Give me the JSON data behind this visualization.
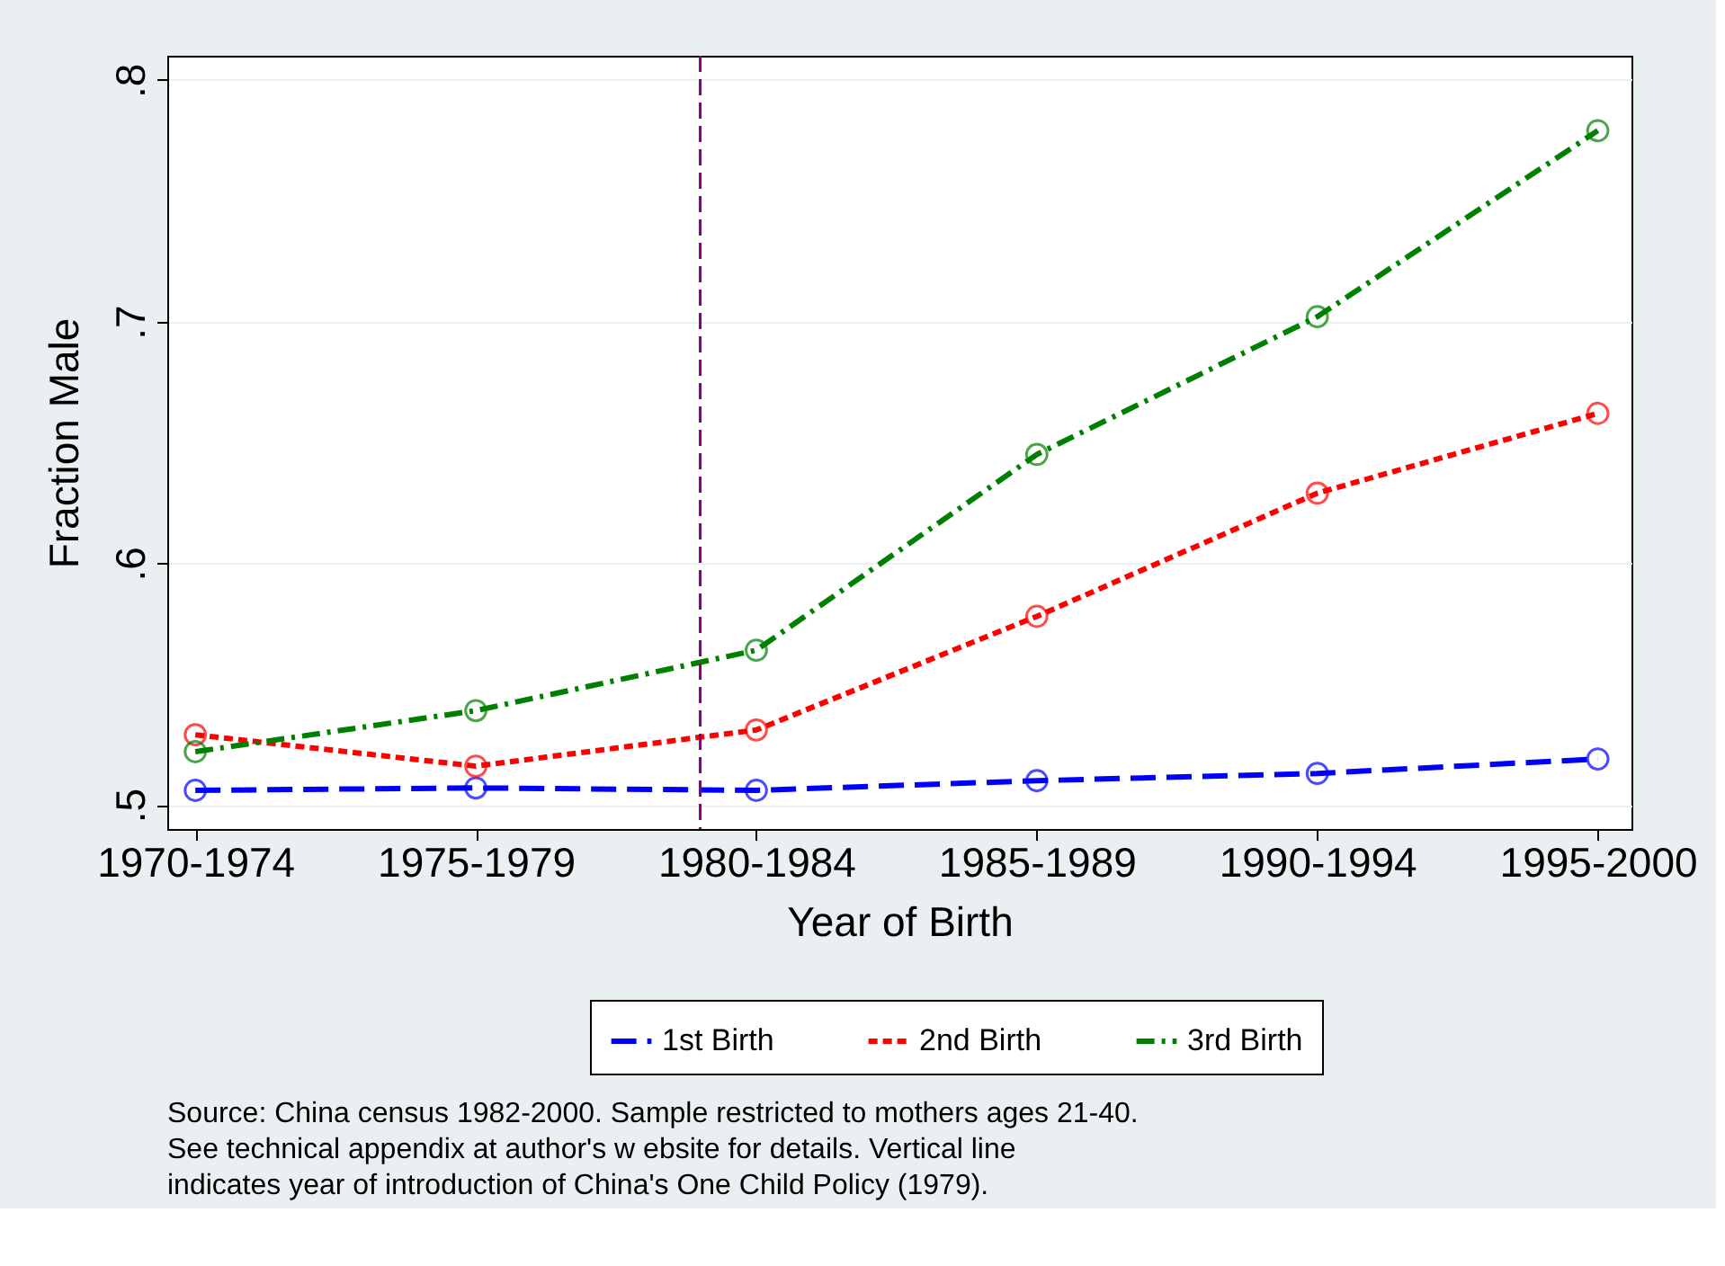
{
  "chart_data": {
    "type": "line",
    "xlabel": "Year of Birth",
    "ylabel": "Fraction Male",
    "categories": [
      "1970-1974",
      "1975-1979",
      "1980-1984",
      "1985-1989",
      "1990-1994",
      "1995-2000"
    ],
    "ylim": [
      0.49,
      0.81
    ],
    "yticks": [
      {
        "value": 0.5,
        "label": ".5"
      },
      {
        "value": 0.6,
        "label": ".6"
      },
      {
        "value": 0.7,
        "label": ".7"
      },
      {
        "value": 0.8,
        "label": ".8"
      }
    ],
    "series": [
      {
        "name": "1st Birth",
        "color": "#0000ff",
        "line_style": "dashed",
        "values": [
          0.506,
          0.507,
          0.506,
          0.51,
          0.513,
          0.519
        ]
      },
      {
        "name": "2nd Birth",
        "color": "#ff0000",
        "line_style": "dotted",
        "values": [
          0.529,
          0.516,
          0.531,
          0.578,
          0.629,
          0.662
        ]
      },
      {
        "name": "3rd Birth",
        "color": "#008000",
        "line_style": "dashdot",
        "values": [
          0.522,
          0.539,
          0.564,
          0.645,
          0.702,
          0.779
        ]
      }
    ],
    "marker": "circle",
    "grid": "y",
    "legend": "bottom",
    "annotations": [
      "Source: China census 1982-2000. Sample restricted to mothers ages 21-40.",
      "See technical appendix at author's w ebsite for details. Vertical line",
      "indicates year of introduction of China's One Child Policy (1979)."
    ]
  }
}
